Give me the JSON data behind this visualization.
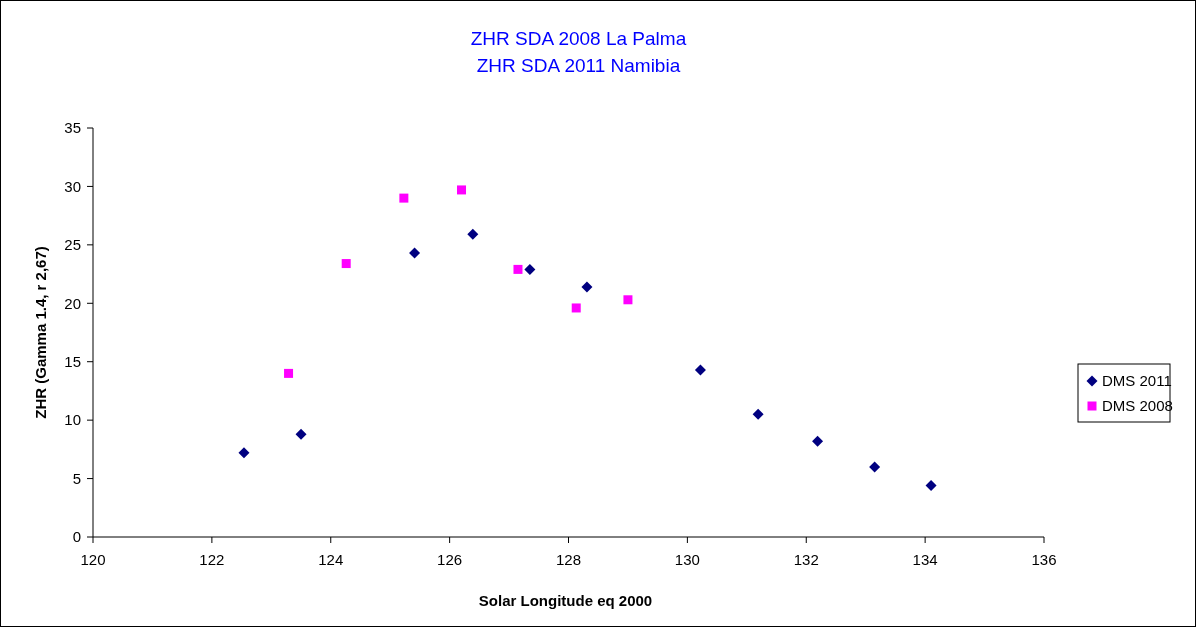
{
  "chart_data": {
    "type": "scatter",
    "title": "ZHR SDA 2008 La Palma\nZHR SDA 2011 Namibia",
    "xlabel": "Solar Longitude eq 2000",
    "ylabel": "ZHR (Gamma 1.4, r 2,67)",
    "xlim": [
      120,
      136
    ],
    "xticks": [
      120,
      122,
      124,
      126,
      128,
      130,
      132,
      134,
      136
    ],
    "ylim": [
      0,
      35
    ],
    "yticks": [
      0,
      5,
      10,
      15,
      20,
      25,
      30,
      35
    ],
    "grid": false,
    "legend": "right",
    "series": [
      {
        "name": "DMS 2011",
        "color": "#000080",
        "marker": "diamond",
        "x": [
          122.54,
          123.5,
          125.41,
          126.39,
          127.35,
          128.31,
          130.22,
          131.19,
          132.19,
          133.15,
          134.1
        ],
        "values": [
          7.2,
          8.8,
          24.3,
          25.9,
          22.9,
          21.4,
          14.3,
          10.5,
          8.2,
          6.0,
          4.4
        ]
      },
      {
        "name": "DMS 2008",
        "color": "#ff00ff",
        "marker": "square",
        "x": [
          123.29,
          124.26,
          125.23,
          126.2,
          127.15,
          128.13,
          129.0
        ],
        "values": [
          14.0,
          23.4,
          29.0,
          29.7,
          22.9,
          19.6,
          20.3
        ]
      }
    ]
  }
}
